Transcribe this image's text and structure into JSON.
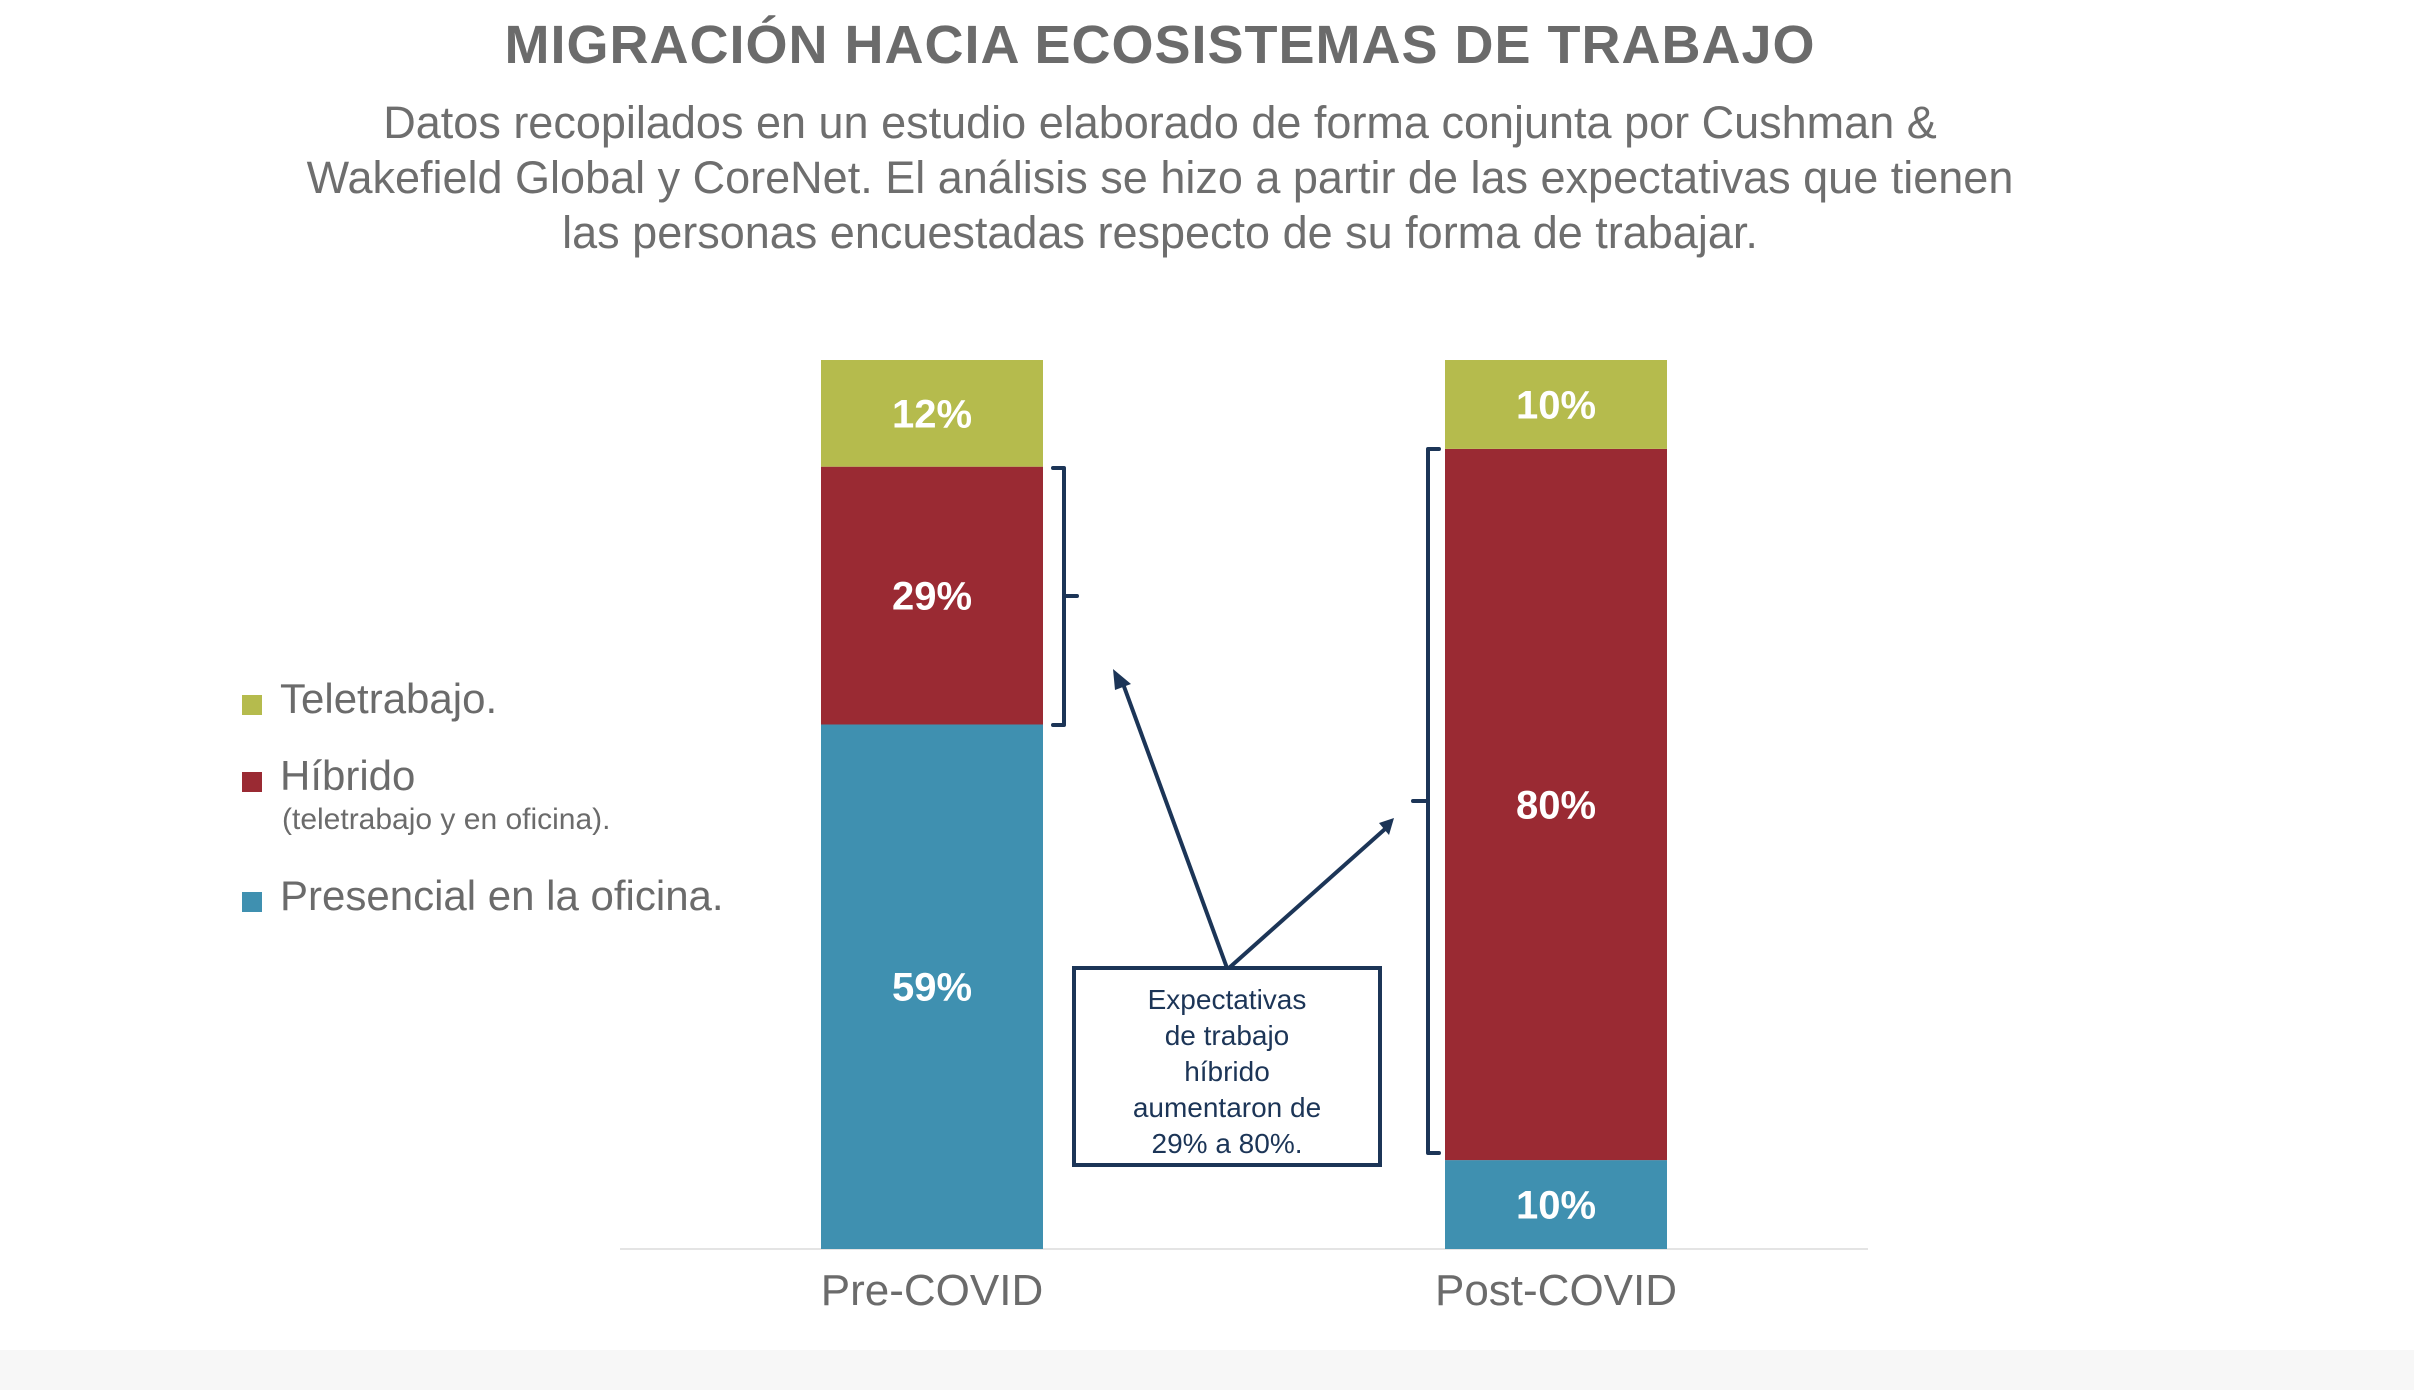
{
  "title": "MIGRACIÓN HACIA ECOSISTEMAS DE TRABAJO",
  "subtitle_lines": [
    "Datos recopilados en un estudio elaborado de forma conjunta por Cushman &",
    "Wakefield Global y CoreNet. El análisis se hizo a partir de las expectativas que tienen",
    "las personas encuestadas respecto de su forma de trabajar."
  ],
  "legend": [
    {
      "label": "Teletrabajo.",
      "note": "",
      "color": "#b5bb4d"
    },
    {
      "label": "Híbrido",
      "note": "(teletrabajo y en oficina).",
      "color": "#9a2a33"
    },
    {
      "label": "Presencial en la oficina.",
      "note": "",
      "color": "#3f90b0"
    }
  ],
  "callout": {
    "lines": [
      "Expectativas",
      "de trabajo",
      "híbrido",
      "aumentaron de",
      "29% a 80%."
    ]
  },
  "colors": {
    "bracket": "#1c3557",
    "axis": "#e4e4e4",
    "segment_text": "#ffffff"
  },
  "chart_data": {
    "type": "bar",
    "stacked": true,
    "categories": [
      "Pre-COVID",
      "Post-COVID"
    ],
    "series": [
      {
        "name": "Presencial en la oficina.",
        "color": "#3f90b0",
        "values": [
          59,
          10
        ],
        "labels": [
          "59%",
          "10%"
        ]
      },
      {
        "name": "Híbrido",
        "color": "#9a2a33",
        "values": [
          29,
          80
        ],
        "labels": [
          "29%",
          "80%"
        ]
      },
      {
        "name": "Teletrabajo.",
        "color": "#b5bb4d",
        "values": [
          12,
          10
        ],
        "labels": [
          "12%",
          "10%"
        ]
      }
    ],
    "ylim": [
      0,
      100
    ],
    "title": "MIGRACIÓN HACIA ECOSISTEMAS DE TRABAJO",
    "xlabel": "",
    "ylabel": "",
    "grid": false,
    "legend_position": "left"
  }
}
